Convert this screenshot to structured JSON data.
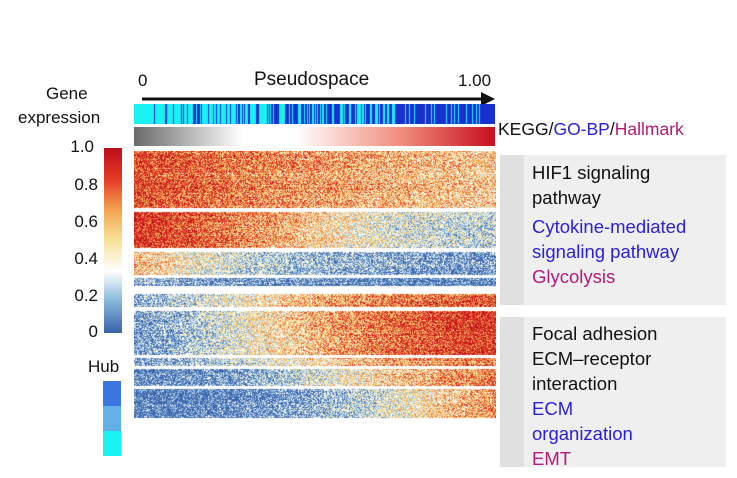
{
  "colors": {
    "kegg": "#111111",
    "go_bp": "#2a1fd6",
    "hallmark": "#b01b7a",
    "hub_levels": [
      "#3a75e0",
      "#62b1e6",
      "#19f2f2"
    ],
    "expression_scale": [
      "#3b64ad",
      "#84b6d8",
      "#ffffff",
      "#f6e39a",
      "#f4a24d",
      "#e33a25",
      "#c00f1b"
    ]
  },
  "legend": {
    "title_line1": "Gene",
    "title_line2": "expression",
    "ticks": [
      "1.0",
      "0.8",
      "0.6",
      "0.4",
      "0.2",
      "0"
    ],
    "hub_label": "Hub"
  },
  "axis": {
    "label": "Pseudospace",
    "start": "0",
    "end": "1.00"
  },
  "annotation_key": {
    "kegg": "KEGG",
    "sep1": "/",
    "go_bp": "GO-BP",
    "sep2": "/",
    "hallmark": "Hallmark"
  },
  "chart_data": {
    "type": "heatmap",
    "title": "",
    "xlabel": "Pseudospace",
    "x_range": [
      0,
      1.0
    ],
    "color_range": [
      0,
      1.0
    ],
    "row_blocks": [
      {
        "name": "cluster-1-block-1",
        "rows": 60,
        "hub_level": null,
        "trend": [
          0.82,
          0.78,
          0.72,
          0.66,
          0.62,
          0.58,
          0.55,
          0.52
        ]
      },
      {
        "name": "cluster-1-block-2",
        "rows": 38,
        "hub_level": null,
        "trend": [
          0.9,
          0.82,
          0.7,
          0.6,
          0.45,
          0.35,
          0.3,
          0.28
        ]
      },
      {
        "name": "cluster-1-block-3",
        "rows": 24,
        "hub_level": null,
        "trend": [
          0.6,
          0.42,
          0.3,
          0.22,
          0.18,
          0.15,
          0.12,
          0.1
        ]
      },
      {
        "name": "cluster-1-block-4",
        "rows": 8,
        "hub_level": null,
        "trend": [
          0.2,
          0.12,
          0.1,
          0.08,
          0.06,
          0.05,
          0.05,
          0.05
        ]
      },
      {
        "name": "cluster-2-block-1",
        "rows": 14,
        "hub_level": null,
        "trend": [
          0.15,
          0.28,
          0.4,
          0.55,
          0.65,
          0.72,
          0.78,
          0.82
        ]
      },
      {
        "name": "cluster-2-block-2",
        "rows": 46,
        "hub_level": 1,
        "trend": [
          0.1,
          0.22,
          0.38,
          0.52,
          0.66,
          0.76,
          0.84,
          0.9
        ]
      },
      {
        "name": "cluster-2-block-3",
        "rows": 8,
        "hub_level": 1,
        "trend": [
          0.12,
          0.2,
          0.3,
          0.42,
          0.55,
          0.62,
          0.68,
          0.72
        ]
      },
      {
        "name": "cluster-2-block-4",
        "rows": 18,
        "hub_level": 2,
        "trend": [
          0.05,
          0.08,
          0.14,
          0.26,
          0.4,
          0.55,
          0.65,
          0.72
        ]
      },
      {
        "name": "cluster-2-block-5",
        "rows": 30,
        "hub_level": 3,
        "trend": [
          0.04,
          0.05,
          0.08,
          0.14,
          0.24,
          0.38,
          0.55,
          0.68
        ]
      }
    ],
    "pseudospace_annotation": {
      "color_low": "#19f2f2",
      "color_high": "#1a2fd0",
      "trend": "low-to-high density of blue"
    },
    "position_gradient": {
      "color_start": "#6a6a6a",
      "color_mid": "#ffffff",
      "color_end": "#c80f1f"
    },
    "clusters": [
      {
        "name": "cluster-1",
        "terms": [
          {
            "source": "KEGG",
            "text": "HIF1 signaling pathway",
            "lines": [
              "HIF1 signaling",
              "pathway"
            ]
          },
          {
            "source": "GO-BP",
            "text": "Cytokine-mediated signaling pathway",
            "lines": [
              "Cytokine-mediated",
              "signaling pathway"
            ]
          },
          {
            "source": "Hallmark",
            "text": "Glycolysis",
            "lines": [
              "Glycolysis"
            ]
          }
        ]
      },
      {
        "name": "cluster-2",
        "terms": [
          {
            "source": "KEGG",
            "text": "Focal adhesion",
            "lines": [
              "Focal adhesion"
            ]
          },
          {
            "source": "KEGG",
            "text": "ECM–receptor interaction",
            "lines": [
              "ECM–receptor",
              "interaction"
            ]
          },
          {
            "source": "GO-BP",
            "text": "ECM organization",
            "lines": [
              "ECM",
              "organization"
            ]
          },
          {
            "source": "Hallmark",
            "text": "EMT",
            "lines": [
              "EMT"
            ]
          }
        ]
      }
    ]
  }
}
